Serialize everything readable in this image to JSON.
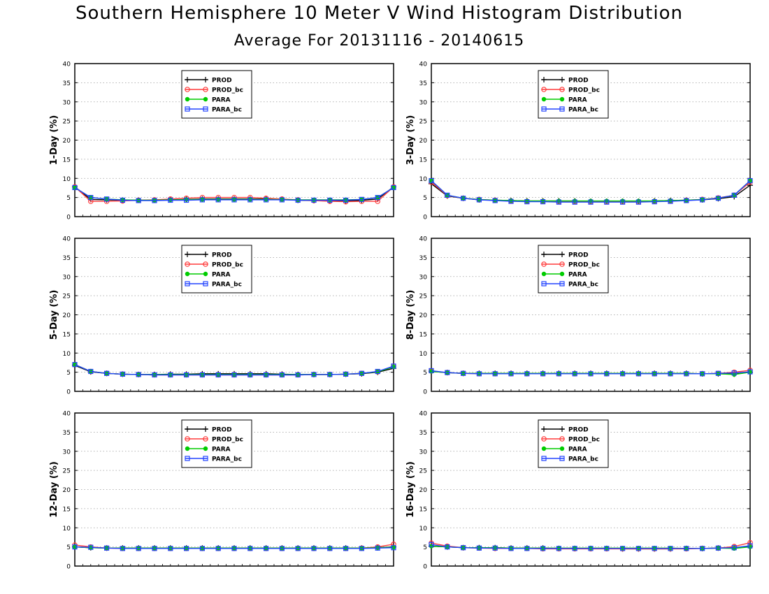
{
  "page": {
    "title": "Southern Hemisphere 10 Meter V Wind Histogram Distribution",
    "subtitle": "Average For 20131116 - 20140615"
  },
  "legend": [
    {
      "name": "PROD",
      "color": "#000000",
      "marker": "plus"
    },
    {
      "name": "PROD_bc",
      "color": "#ff3b3b",
      "marker": "circle"
    },
    {
      "name": "PARA",
      "color": "#00cc00",
      "marker": "filled-circle"
    },
    {
      "name": "PARA_bc",
      "color": "#2244ff",
      "marker": "square"
    }
  ],
  "chart_data": [
    {
      "type": "line",
      "ylabel": "1-Day (%)",
      "ylim": [
        0,
        40
      ],
      "yticks": [
        0,
        5,
        10,
        15,
        20,
        25,
        30,
        35,
        40
      ],
      "grid": true,
      "legend_position": "top-center",
      "x": [
        1,
        2,
        3,
        4,
        5,
        6,
        7,
        8,
        9,
        10,
        11,
        12,
        13,
        14,
        15,
        16,
        17,
        18,
        19,
        20,
        21
      ],
      "series": [
        {
          "name": "PROD",
          "values": [
            7.8,
            4.5,
            4.4,
            4.3,
            4.3,
            4.3,
            4.4,
            4.5,
            4.6,
            4.6,
            4.6,
            4.6,
            4.6,
            4.5,
            4.3,
            4.2,
            4.1,
            4.1,
            4.3,
            4.6,
            7.8
          ]
        },
        {
          "name": "PROD_bc",
          "values": [
            7.8,
            4.0,
            4.0,
            4.1,
            4.3,
            4.4,
            4.6,
            4.8,
            5.0,
            5.0,
            5.0,
            5.0,
            4.8,
            4.6,
            4.4,
            4.2,
            4.0,
            3.9,
            4.0,
            4.0,
            7.8
          ]
        },
        {
          "name": "PARA",
          "values": [
            7.6,
            5.0,
            4.6,
            4.4,
            4.3,
            4.3,
            4.4,
            4.5,
            4.5,
            4.5,
            4.5,
            4.5,
            4.5,
            4.5,
            4.4,
            4.4,
            4.4,
            4.4,
            4.5,
            5.0,
            7.6
          ]
        },
        {
          "name": "PARA_bc",
          "values": [
            7.6,
            5.0,
            4.6,
            4.3,
            4.2,
            4.2,
            4.3,
            4.3,
            4.4,
            4.4,
            4.4,
            4.4,
            4.4,
            4.4,
            4.3,
            4.3,
            4.3,
            4.3,
            4.5,
            5.0,
            7.6
          ]
        }
      ]
    },
    {
      "type": "line",
      "ylabel": "3-Day (%)",
      "ylim": [
        0,
        40
      ],
      "yticks": [
        0,
        5,
        10,
        15,
        20,
        25,
        30,
        35,
        40
      ],
      "grid": true,
      "legend_position": "top-center",
      "x": [
        1,
        2,
        3,
        4,
        5,
        6,
        7,
        8,
        9,
        10,
        11,
        12,
        13,
        14,
        15,
        16,
        17,
        18,
        19,
        20,
        21
      ],
      "series": [
        {
          "name": "PROD",
          "values": [
            8.6,
            5.4,
            4.8,
            4.4,
            4.3,
            4.2,
            4.1,
            4.1,
            4.1,
            4.1,
            4.0,
            4.0,
            4.0,
            4.0,
            4.1,
            4.2,
            4.3,
            4.4,
            4.7,
            5.2,
            8.2
          ]
        },
        {
          "name": "PROD_bc",
          "values": [
            9.0,
            5.5,
            4.8,
            4.5,
            4.3,
            4.1,
            4.0,
            4.0,
            3.9,
            3.9,
            3.9,
            3.9,
            3.9,
            3.9,
            4.0,
            4.1,
            4.3,
            4.5,
            4.9,
            5.6,
            9.0
          ]
        },
        {
          "name": "PARA",
          "values": [
            9.4,
            5.6,
            4.8,
            4.5,
            4.3,
            4.2,
            4.1,
            4.1,
            4.1,
            4.1,
            4.1,
            4.1,
            4.1,
            4.1,
            4.1,
            4.2,
            4.3,
            4.5,
            4.8,
            5.6,
            9.4
          ]
        },
        {
          "name": "PARA_bc",
          "values": [
            9.4,
            5.6,
            4.8,
            4.4,
            4.2,
            4.0,
            3.9,
            3.9,
            3.8,
            3.8,
            3.8,
            3.8,
            3.8,
            3.8,
            3.9,
            4.0,
            4.2,
            4.4,
            4.8,
            5.6,
            9.4
          ]
        }
      ]
    },
    {
      "type": "line",
      "ylabel": "5-Day (%)",
      "ylim": [
        0,
        40
      ],
      "yticks": [
        0,
        5,
        10,
        15,
        20,
        25,
        30,
        35,
        40
      ],
      "grid": true,
      "legend_position": "top-center",
      "x": [
        1,
        2,
        3,
        4,
        5,
        6,
        7,
        8,
        9,
        10,
        11,
        12,
        13,
        14,
        15,
        16,
        17,
        18,
        19,
        20,
        21
      ],
      "series": [
        {
          "name": "PROD",
          "values": [
            6.8,
            5.1,
            4.7,
            4.5,
            4.4,
            4.4,
            4.5,
            4.5,
            4.6,
            4.6,
            4.6,
            4.6,
            4.6,
            4.5,
            4.4,
            4.4,
            4.4,
            4.5,
            4.6,
            5.0,
            6.0
          ]
        },
        {
          "name": "PROD_bc",
          "values": [
            7.0,
            5.2,
            4.7,
            4.5,
            4.4,
            4.3,
            4.3,
            4.3,
            4.3,
            4.3,
            4.3,
            4.3,
            4.3,
            4.3,
            4.3,
            4.4,
            4.4,
            4.5,
            4.7,
            5.1,
            6.6
          ]
        },
        {
          "name": "PARA",
          "values": [
            7.0,
            5.2,
            4.7,
            4.5,
            4.4,
            4.4,
            4.4,
            4.4,
            4.4,
            4.4,
            4.4,
            4.4,
            4.4,
            4.4,
            4.4,
            4.4,
            4.4,
            4.5,
            4.7,
            5.1,
            6.4
          ]
        },
        {
          "name": "PARA_bc",
          "values": [
            7.0,
            5.2,
            4.7,
            4.5,
            4.4,
            4.3,
            4.3,
            4.3,
            4.3,
            4.3,
            4.3,
            4.3,
            4.3,
            4.3,
            4.3,
            4.4,
            4.4,
            4.5,
            4.7,
            5.2,
            6.6
          ]
        }
      ]
    },
    {
      "type": "line",
      "ylabel": "8-Day (%)",
      "ylim": [
        0,
        40
      ],
      "yticks": [
        0,
        5,
        10,
        15,
        20,
        25,
        30,
        35,
        40
      ],
      "grid": true,
      "legend_position": "top-center",
      "x": [
        1,
        2,
        3,
        4,
        5,
        6,
        7,
        8,
        9,
        10,
        11,
        12,
        13,
        14,
        15,
        16,
        17,
        18,
        19,
        20,
        21
      ],
      "series": [
        {
          "name": "PROD",
          "values": [
            5.2,
            4.9,
            4.7,
            4.7,
            4.7,
            4.7,
            4.7,
            4.7,
            4.7,
            4.7,
            4.7,
            4.7,
            4.7,
            4.7,
            4.7,
            4.7,
            4.7,
            4.6,
            4.6,
            4.5,
            5.0
          ]
        },
        {
          "name": "PROD_bc",
          "values": [
            5.3,
            4.9,
            4.7,
            4.6,
            4.6,
            4.6,
            4.6,
            4.6,
            4.6,
            4.6,
            4.6,
            4.6,
            4.6,
            4.6,
            4.6,
            4.6,
            4.6,
            4.6,
            4.7,
            5.0,
            5.5
          ]
        },
        {
          "name": "PARA",
          "values": [
            5.2,
            4.9,
            4.7,
            4.7,
            4.7,
            4.7,
            4.7,
            4.7,
            4.7,
            4.7,
            4.7,
            4.7,
            4.7,
            4.7,
            4.7,
            4.7,
            4.7,
            4.6,
            4.6,
            4.4,
            5.0
          ]
        },
        {
          "name": "PARA_bc",
          "values": [
            5.4,
            4.9,
            4.7,
            4.6,
            4.6,
            4.6,
            4.6,
            4.6,
            4.6,
            4.6,
            4.6,
            4.6,
            4.6,
            4.6,
            4.6,
            4.6,
            4.6,
            4.6,
            4.7,
            4.8,
            5.1
          ]
        }
      ]
    },
    {
      "type": "line",
      "ylabel": "12-Day (%)",
      "ylim": [
        0,
        40
      ],
      "yticks": [
        0,
        5,
        10,
        15,
        20,
        25,
        30,
        35,
        40
      ],
      "grid": true,
      "legend_position": "top-center",
      "x": [
        1,
        2,
        3,
        4,
        5,
        6,
        7,
        8,
        9,
        10,
        11,
        12,
        13,
        14,
        15,
        16,
        17,
        18,
        19,
        20,
        21
      ],
      "series": [
        {
          "name": "PROD",
          "values": [
            5.0,
            4.8,
            4.7,
            4.7,
            4.7,
            4.7,
            4.7,
            4.7,
            4.7,
            4.7,
            4.7,
            4.7,
            4.7,
            4.7,
            4.7,
            4.7,
            4.7,
            4.7,
            4.7,
            4.8,
            5.0
          ]
        },
        {
          "name": "PROD_bc",
          "values": [
            5.5,
            5.0,
            4.7,
            4.6,
            4.6,
            4.6,
            4.6,
            4.6,
            4.6,
            4.6,
            4.6,
            4.6,
            4.6,
            4.6,
            4.6,
            4.6,
            4.6,
            4.6,
            4.7,
            5.0,
            5.7
          ]
        },
        {
          "name": "PARA",
          "values": [
            5.0,
            4.8,
            4.7,
            4.7,
            4.7,
            4.7,
            4.7,
            4.7,
            4.7,
            4.7,
            4.7,
            4.7,
            4.7,
            4.7,
            4.7,
            4.7,
            4.7,
            4.7,
            4.7,
            4.8,
            4.9
          ]
        },
        {
          "name": "PARA_bc",
          "values": [
            5.0,
            4.9,
            4.7,
            4.6,
            4.6,
            4.6,
            4.6,
            4.6,
            4.6,
            4.6,
            4.6,
            4.6,
            4.6,
            4.6,
            4.6,
            4.6,
            4.6,
            4.6,
            4.6,
            4.7,
            4.8
          ]
        }
      ]
    },
    {
      "type": "line",
      "ylabel": "16-Day (%)",
      "ylim": [
        0,
        40
      ],
      "yticks": [
        0,
        5,
        10,
        15,
        20,
        25,
        30,
        35,
        40
      ],
      "grid": true,
      "legend_position": "top-center",
      "x": [
        1,
        2,
        3,
        4,
        5,
        6,
        7,
        8,
        9,
        10,
        11,
        12,
        13,
        14,
        15,
        16,
        17,
        18,
        19,
        20,
        21
      ],
      "series": [
        {
          "name": "PROD",
          "values": [
            5.2,
            5.0,
            4.8,
            4.8,
            4.8,
            4.7,
            4.7,
            4.7,
            4.6,
            4.6,
            4.6,
            4.6,
            4.5,
            4.5,
            4.5,
            4.5,
            4.6,
            4.6,
            4.7,
            4.8,
            5.2
          ]
        },
        {
          "name": "PROD_bc",
          "values": [
            6.0,
            5.2,
            4.8,
            4.7,
            4.6,
            4.6,
            4.6,
            4.5,
            4.5,
            4.5,
            4.5,
            4.5,
            4.5,
            4.5,
            4.5,
            4.5,
            4.5,
            4.6,
            4.7,
            5.1,
            6.1
          ]
        },
        {
          "name": "PARA",
          "values": [
            5.2,
            5.0,
            4.8,
            4.8,
            4.8,
            4.7,
            4.7,
            4.7,
            4.7,
            4.7,
            4.7,
            4.7,
            4.7,
            4.7,
            4.7,
            4.7,
            4.6,
            4.6,
            4.7,
            4.6,
            5.0
          ]
        },
        {
          "name": "PARA_bc",
          "values": [
            5.6,
            5.0,
            4.8,
            4.7,
            4.7,
            4.6,
            4.6,
            4.6,
            4.6,
            4.6,
            4.6,
            4.6,
            4.6,
            4.6,
            4.6,
            4.6,
            4.6,
            4.6,
            4.7,
            4.8,
            5.3
          ]
        }
      ]
    }
  ]
}
